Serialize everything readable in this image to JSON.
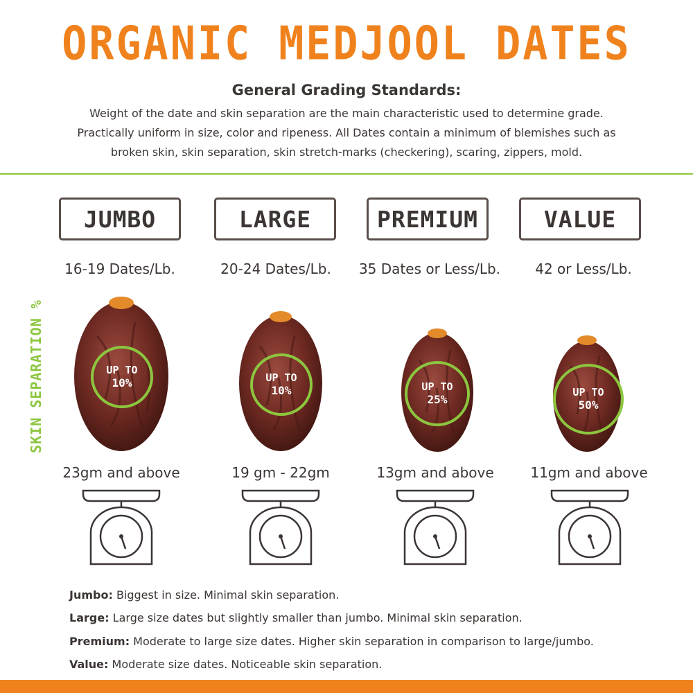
{
  "title": "ORGANIC MEDJOOL DATES",
  "subheading": "General Grading Standards:",
  "intro": {
    "line1": "Weight of the date and skin separation are the main characteristic used to determine grade.",
    "line2": "Practically uniform in size, color and ripeness. All Dates contain a minimum of blemishes such as",
    "line3": "broken skin, skin separation, skin stretch-marks (checkering), scaring, zippers, mold."
  },
  "side_label": "SKIN SEPARATION %",
  "grades": [
    {
      "name": "JUMBO",
      "count": "16-19 Dates/Lb.",
      "sep_line1": "UP TO",
      "sep_line2": "10%",
      "weight": "23gm and above"
    },
    {
      "name": "LARGE",
      "count": "20-24 Dates/Lb.",
      "sep_line1": "UP TO",
      "sep_line2": "10%",
      "weight": "19 gm - 22gm"
    },
    {
      "name": "PREMIUM",
      "count": "35 Dates or Less/Lb.",
      "sep_line1": "UP TO",
      "sep_line2": "25%",
      "weight": "13gm and above"
    },
    {
      "name": "VALUE",
      "count": "42 or Less/Lb.",
      "sep_line1": "UP TO",
      "sep_line2": "50%",
      "weight": "11gm and above"
    }
  ],
  "descriptions": [
    {
      "term": "Jumbo:",
      "text": " Biggest in size. Minimal skin separation."
    },
    {
      "term": "Large:",
      "text": " Large size dates but slightly smaller than jumbo. Minimal skin separation."
    },
    {
      "term": "Premium:",
      "text": " Moderate to large size dates. Higher skin separation in comparison to large/jumbo."
    },
    {
      "term": "Value:",
      "text": " Moderate size dates. Noticeable skin separation."
    }
  ],
  "colors": {
    "title_orange": "#f0821e",
    "accent_green": "#8cc63f",
    "text_dark": "#3b3533",
    "date_brown": "#6e2a22"
  },
  "icons": [
    "date-fruit-image",
    "kitchen-scale-icon"
  ]
}
